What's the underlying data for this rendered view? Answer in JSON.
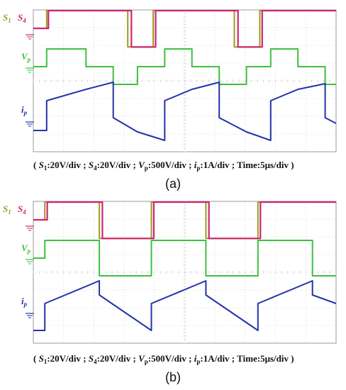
{
  "colors": {
    "s1": "#9c9a20",
    "s4": "#cc2770",
    "vp": "#3fbf3f",
    "ip": "#2233aa",
    "grid": "#c0c0c0",
    "frame": "#9a9a9a"
  },
  "chart_data": [
    {
      "type": "line",
      "panel_label": "(a)",
      "caption": {
        "open": "( ",
        "s1_sym": "S",
        "s1_sub": "1",
        "s1_rest": ":20V/div ; ",
        "s4_sym": "S",
        "s4_sub": "4",
        "s4_rest": ":20V/div ; ",
        "vp_sym": "V",
        "vp_sub": "p",
        "vp_rest": ":500V/div ; ",
        "ip_sym": "i",
        "ip_sub": "p",
        "ip_rest": ":1A/div ; Time:5μs/div )"
      },
      "labels": {
        "s1_main": "S",
        "s1_sub": "1",
        "s4_main": "S",
        "s4_sub": "4",
        "vp_main": "V",
        "vp_sub": "p",
        "ip_main": "i",
        "ip_sub": "p"
      },
      "scales": {
        "time_per_div": "5μs",
        "s1_per_div": "20V",
        "s4_per_div": "20V",
        "vp_per_div": "500V",
        "ip_per_div": "1A"
      },
      "grid": true,
      "divisions": {
        "x": 10,
        "y": 8
      },
      "x_range_us": [
        0,
        50
      ],
      "series": [
        {
          "name": "S1",
          "unit": "V",
          "x_us": [
            0,
            2.2,
            2.2,
            15.6,
            15.6,
            19.8,
            19.8,
            33.2,
            33.2,
            37.4,
            37.4,
            50
          ],
          "y": [
            0,
            0,
            10.5,
            10.5,
            -10.5,
            -10.5,
            10.5,
            10.5,
            -10.5,
            -10.5,
            10.5,
            10.5
          ]
        },
        {
          "name": "S4",
          "unit": "V",
          "x_us": [
            0,
            2.5,
            2.5,
            16.2,
            16.2,
            20.2,
            20.2,
            33.8,
            33.8,
            37.8,
            37.8,
            50
          ],
          "y": [
            0,
            0,
            10.5,
            10.5,
            -10.5,
            -10.5,
            10.5,
            10.5,
            -10.5,
            -10.5,
            10.5,
            10.5
          ]
        },
        {
          "name": "Vp",
          "unit": "V",
          "x_us": [
            0,
            2.2,
            2.2,
            8.7,
            8.7,
            13.2,
            13.2,
            17.2,
            17.2,
            21.7,
            21.7,
            26.2,
            26.2,
            30.7,
            30.7,
            35.2,
            35.2,
            39.2,
            39.2,
            43.7,
            43.7,
            48.2,
            48.2,
            50
          ],
          "y": [
            0,
            0,
            500,
            500,
            0,
            0,
            -500,
            -500,
            0,
            0,
            500,
            500,
            0,
            0,
            -500,
            -500,
            0,
            0,
            500,
            500,
            0,
            0,
            -500,
            -500
          ]
        },
        {
          "name": "ip",
          "unit": "A",
          "x_us": [
            0,
            2.2,
            2.2,
            8.7,
            13.2,
            13.2,
            17.2,
            21.7,
            21.7,
            26.2,
            30.7,
            30.7,
            35.2,
            39.2,
            39.2,
            43.7,
            48.2,
            48.2,
            50
          ],
          "y": [
            -1.3,
            -1.3,
            0.8,
            1.6,
            2.1,
            -0.4,
            -1.4,
            -2.0,
            0.8,
            1.6,
            2.1,
            -0.4,
            -1.4,
            -2.0,
            0.8,
            1.6,
            2.0,
            -0.4,
            -0.8
          ]
        }
      ]
    },
    {
      "type": "line",
      "panel_label": "(b)",
      "caption": {
        "open": "( ",
        "s1_sym": "S",
        "s1_sub": "1",
        "s1_rest": ":20V/div ; ",
        "s4_sym": "S",
        "s4_sub": "4",
        "s4_rest": ":20V/div ; ",
        "vp_sym": "V",
        "vp_sub": "p",
        "vp_rest": ":500V/div ; ",
        "ip_sym": "i",
        "ip_sub": "p",
        "ip_rest": ":1A/div ; Time:5μs/div )"
      },
      "labels": {
        "s1_main": "S",
        "s1_sub": "1",
        "s4_main": "S",
        "s4_sub": "4",
        "vp_main": "V",
        "vp_sub": "p",
        "ip_main": "i",
        "ip_sub": "p"
      },
      "scales": {
        "time_per_div": "5μs",
        "s1_per_div": "20V",
        "s4_per_div": "20V",
        "vp_per_div": "500V",
        "ip_per_div": "1A"
      },
      "grid": true,
      "divisions": {
        "x": 10,
        "y": 8
      },
      "x_range_us": [
        0,
        50
      ],
      "series": [
        {
          "name": "S1",
          "unit": "V",
          "x_us": [
            0,
            1.9,
            1.9,
            10.9,
            10.9,
            19.5,
            19.5,
            28.5,
            28.5,
            37.1,
            37.1,
            46.1,
            46.1,
            50
          ],
          "y": [
            0,
            0,
            10.5,
            10.5,
            -10.5,
            -10.5,
            10.5,
            10.5,
            -10.5,
            -10.5,
            10.5,
            10.5,
            10.5,
            10.5
          ]
        },
        {
          "name": "S4",
          "unit": "V",
          "x_us": [
            0,
            2.3,
            2.3,
            11.4,
            11.4,
            19.9,
            19.9,
            29.0,
            29.0,
            37.5,
            37.5,
            50
          ],
          "y": [
            0,
            0,
            10.5,
            10.5,
            -10.5,
            -10.5,
            10.5,
            10.5,
            -10.5,
            -10.5,
            10.5,
            10.5
          ]
        },
        {
          "name": "Vp",
          "unit": "V",
          "x_us": [
            0,
            1.9,
            1.9,
            5.8,
            5.8,
            10.9,
            10.9,
            19.5,
            19.5,
            23.4,
            23.4,
            28.5,
            28.5,
            37.1,
            37.1,
            41.0,
            41.0,
            46.1,
            46.1,
            50
          ],
          "y": [
            0,
            0,
            500,
            500,
            500,
            500,
            -500,
            -500,
            500,
            500,
            500,
            500,
            -500,
            -500,
            500,
            500,
            500,
            500,
            -500,
            -500
          ]
        },
        {
          "name": "ip",
          "unit": "A",
          "x_us": [
            0,
            1.9,
            1.9,
            10.9,
            10.9,
            19.5,
            19.5,
            28.5,
            28.5,
            37.1,
            37.1,
            46.1,
            46.1,
            50
          ],
          "y": [
            -1.9,
            -1.9,
            0.0,
            1.6,
            0.6,
            -1.9,
            0.0,
            1.6,
            0.6,
            -1.9,
            0.0,
            1.6,
            0.6,
            0.0
          ]
        }
      ]
    }
  ]
}
